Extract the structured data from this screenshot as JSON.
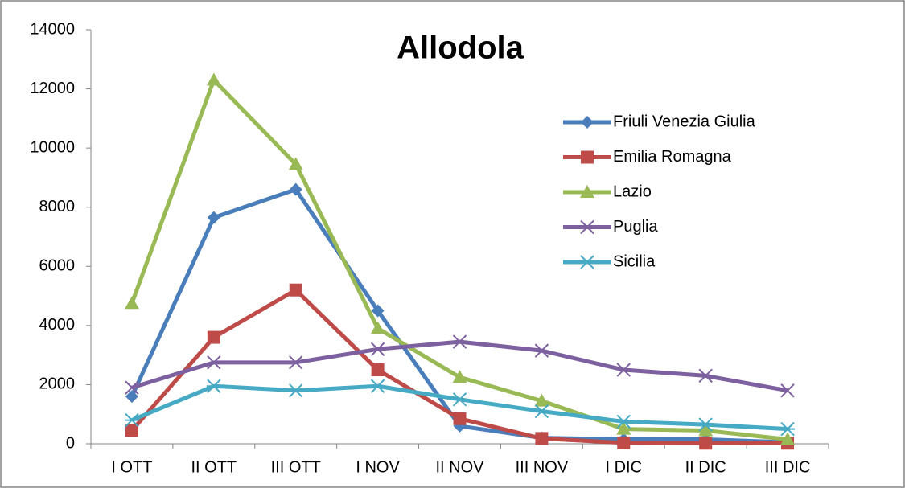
{
  "chart_data": {
    "type": "line",
    "title": "Allodola",
    "categories": [
      "I OTT",
      "II OTT",
      "III OTT",
      "I NOV",
      "II NOV",
      "III NOV",
      "I DIC",
      "II DIC",
      "III DIC"
    ],
    "series": [
      {
        "name": "Friuli Venezia Giulia",
        "color": "#4a7ebb",
        "marker": "diamond",
        "values": [
          1600,
          7650,
          8600,
          4500,
          600,
          200,
          150,
          150,
          50
        ]
      },
      {
        "name": "Emilia Romagna",
        "color": "#be4b48",
        "marker": "square",
        "values": [
          450,
          3600,
          5200,
          2500,
          850,
          180,
          30,
          20,
          20
        ]
      },
      {
        "name": "Lazio",
        "color": "#98b954",
        "marker": "triangle",
        "values": [
          4750,
          12300,
          9450,
          3900,
          2250,
          1450,
          500,
          450,
          150
        ]
      },
      {
        "name": "Puglia",
        "color": "#7d60a0",
        "marker": "x",
        "values": [
          1900,
          2750,
          2750,
          3200,
          3450,
          3150,
          2500,
          2300,
          1800
        ]
      },
      {
        "name": "Sicilia",
        "color": "#46aac5",
        "marker": "star",
        "values": [
          800,
          1950,
          1800,
          1950,
          1500,
          1100,
          750,
          650,
          500
        ]
      }
    ],
    "ylim": [
      0,
      14000
    ],
    "yticks": [
      0,
      2000,
      4000,
      6000,
      8000,
      10000,
      12000,
      14000
    ],
    "grid": false
  }
}
